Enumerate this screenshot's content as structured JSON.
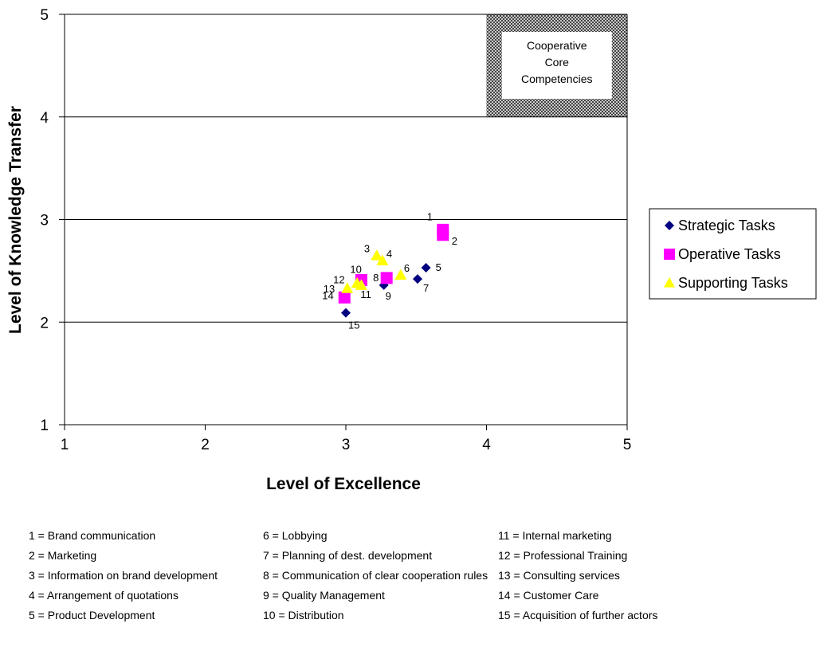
{
  "chart_data": {
    "type": "scatter",
    "title": "",
    "xlabel": "Level of Excellence",
    "ylabel": "Level of Knowledge Transfer",
    "xlim": [
      1,
      5
    ],
    "ylim": [
      1,
      5
    ],
    "xticks": [
      "1",
      "2",
      "3",
      "4",
      "5"
    ],
    "yticks": [
      "1",
      "2",
      "3",
      "4",
      "5"
    ],
    "grid": "horizontal",
    "legend_position": "right",
    "region": {
      "label_lines": [
        "Cooperative",
        "Core",
        "Competencies"
      ],
      "x": [
        4,
        5
      ],
      "y": [
        4,
        5
      ],
      "pattern": "crosshatch"
    },
    "series": [
      {
        "name": "Strategic Tasks",
        "marker": "diamond",
        "color": "#000080",
        "points": [
          {
            "label": "5",
            "x": 3.57,
            "y": 2.53
          },
          {
            "label": "7",
            "x": 3.51,
            "y": 2.42
          },
          {
            "label": "9",
            "x": 3.27,
            "y": 2.36
          },
          {
            "label": "15",
            "x": 3.0,
            "y": 2.09
          }
        ]
      },
      {
        "name": "Operative Tasks",
        "marker": "square",
        "color": "#ff00ff",
        "points": [
          {
            "label": "1",
            "x": 3.69,
            "y": 2.9
          },
          {
            "label": "2",
            "x": 3.69,
            "y": 2.85
          },
          {
            "label": "8",
            "x": 3.29,
            "y": 2.43
          },
          {
            "label": "10",
            "x": 3.11,
            "y": 2.41
          },
          {
            "label": "14",
            "x": 2.99,
            "y": 2.24
          }
        ]
      },
      {
        "name": "Supporting Tasks",
        "marker": "triangle",
        "color": "#ffff00",
        "points": [
          {
            "label": "3",
            "x": 3.22,
            "y": 2.65
          },
          {
            "label": "4",
            "x": 3.26,
            "y": 2.6
          },
          {
            "label": "6",
            "x": 3.39,
            "y": 2.46
          },
          {
            "label": "11",
            "x": 3.11,
            "y": 2.36
          },
          {
            "label": "12",
            "x": 3.08,
            "y": 2.38
          },
          {
            "label": "13",
            "x": 3.01,
            "y": 2.33
          }
        ]
      }
    ],
    "key": [
      [
        "1 = Brand communication",
        "2 = Marketing",
        "3 = Information on brand development",
        "4 = Arrangement of quotations",
        "5 = Product Development"
      ],
      [
        "6 = Lobbying",
        "7 = Planning of dest. development",
        "8 = Communication of clear cooperation rules",
        "9 = Quality Management",
        "10 = Distribution"
      ],
      [
        "11 = Internal marketing",
        "12 = Professional Training",
        "13 = Consulting services",
        "14 = Customer Care",
        "15 = Acquisition of further actors"
      ]
    ]
  }
}
